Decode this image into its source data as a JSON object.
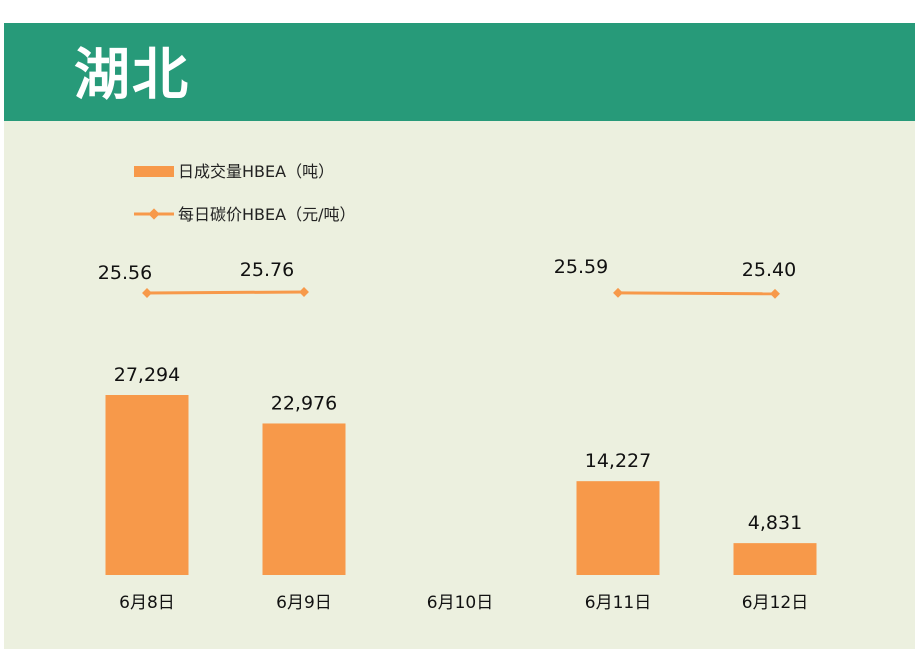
{
  "header": {
    "title": "湖北"
  },
  "legend": {
    "volume": "日成交量HBEA（吨）",
    "price": "每日碳价HBEA（元/吨）"
  },
  "colors": {
    "header_bg": "#279a79",
    "panel_bg": "#ecf0df",
    "bar": "#f7994a",
    "line": "#f7994a"
  },
  "chart_data": {
    "type": "bar",
    "categories": [
      "6月8日",
      "6月9日",
      "6月10日",
      "6月11日",
      "6月12日"
    ],
    "series": [
      {
        "name": "日成交量HBEA（吨）",
        "type": "bar",
        "values": [
          27294,
          22976,
          null,
          14227,
          4831
        ],
        "labels": [
          "27,294",
          "22,976",
          "",
          "14,227",
          "4,831"
        ]
      },
      {
        "name": "每日碳价HBEA（元/吨）",
        "type": "line",
        "values": [
          25.56,
          25.76,
          null,
          25.59,
          25.4
        ],
        "labels": [
          "25.56",
          "25.76",
          "",
          "25.59",
          "25.40"
        ]
      }
    ]
  }
}
